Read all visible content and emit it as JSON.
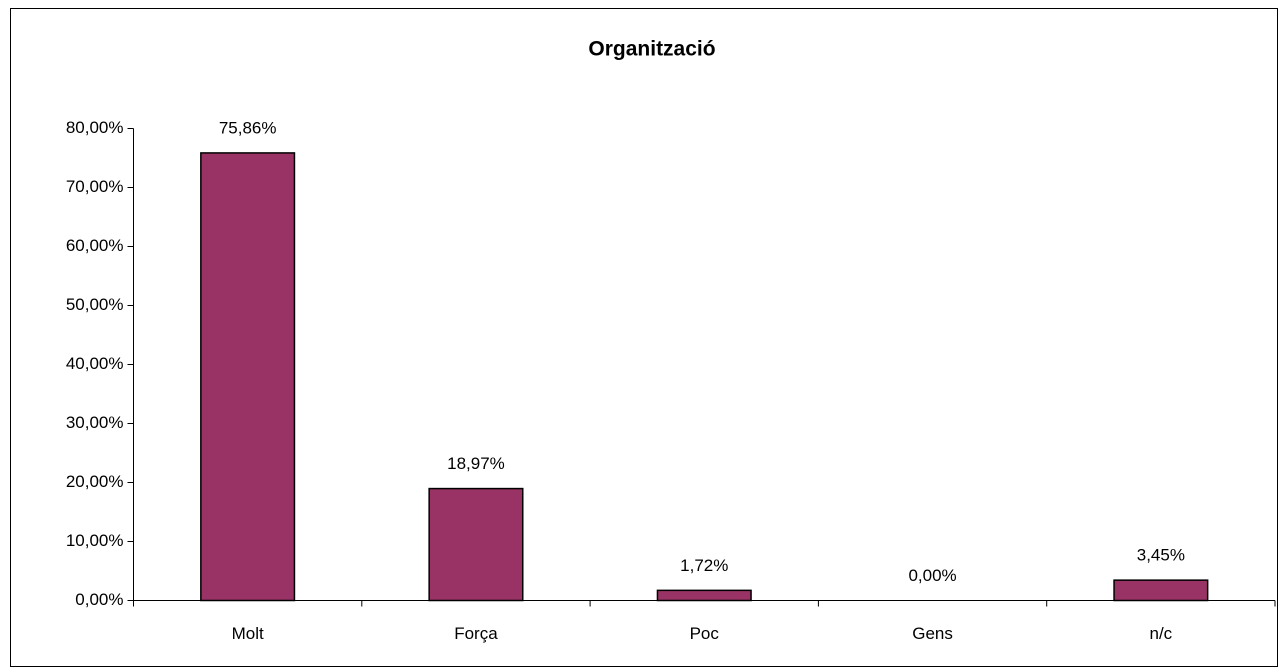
{
  "chart_data": {
    "type": "bar",
    "title": "Organització",
    "categories": [
      "Molt",
      "Força",
      "Poc",
      "Gens",
      "n/c"
    ],
    "values": [
      75.86,
      18.97,
      1.72,
      0,
      3.45
    ],
    "value_labels": [
      "75,86%",
      "18,97%",
      "1,72%",
      "0,00%",
      "3,45%"
    ],
    "color": "#993366",
    "ylim": [
      0,
      80
    ],
    "yticks": [
      {
        "value": 0,
        "label": "0,00%"
      },
      {
        "value": 10,
        "label": "10,00%"
      },
      {
        "value": 20,
        "label": "20,00%"
      },
      {
        "value": 30,
        "label": "30,00%"
      },
      {
        "value": 40,
        "label": "40,00%"
      },
      {
        "value": 50,
        "label": "50,00%"
      },
      {
        "value": 60,
        "label": "60,00%"
      },
      {
        "value": 70,
        "label": "70,00%"
      },
      {
        "value": 80,
        "label": "80,00%"
      }
    ],
    "grid": false
  }
}
